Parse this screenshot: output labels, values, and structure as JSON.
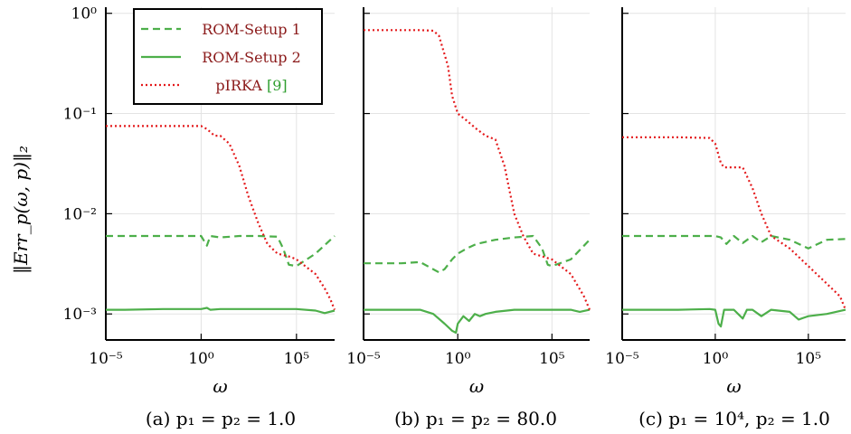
{
  "colors": {
    "rom1": "#4daf4a",
    "rom2": "#4daf4a",
    "pirka": "#e41a1c",
    "legend_text": "#8b1a1a",
    "cite": "#2f9e2f"
  },
  "ylabel": "‖Err_p(ω, p)‖₂",
  "legend": {
    "position": "top-left of panel (a)",
    "entries": [
      {
        "label": "ROM-Setup 1",
        "style": "dashed"
      },
      {
        "label": "ROM-Setup 2",
        "style": "solid"
      },
      {
        "label": "pIRKA",
        "cite": "[9]",
        "style": "dotted"
      }
    ]
  },
  "chart_data": [
    {
      "type": "line",
      "caption": "(a) p₁ = p₂ = 1.0",
      "xlabel": "ω",
      "xscale": "log",
      "yscale": "log",
      "xlim": [
        1e-05,
        10000000.0
      ],
      "ylim": [
        0.00055,
        1.15
      ],
      "xticks": [
        "10⁻⁵",
        "10⁰",
        "10⁵"
      ],
      "yticks": [
        "10⁰",
        "10⁻¹",
        "10⁻²",
        "10⁻³"
      ],
      "grid": true,
      "series": [
        {
          "name": "ROM-Setup 1",
          "style": "dashed",
          "points": [
            [
              1e-05,
              0.006
            ],
            [
              0.001,
              0.006
            ],
            [
              0.1,
              0.006
            ],
            [
              1,
              0.006
            ],
            [
              2,
              0.0048
            ],
            [
              3,
              0.006
            ],
            [
              10,
              0.0058
            ],
            [
              100,
              0.006
            ],
            [
              1000,
              0.006
            ],
            [
              10000.0,
              0.0059
            ],
            [
              20000.0,
              0.0045
            ],
            [
              40000.0,
              0.0031
            ],
            [
              100000.0,
              0.003
            ],
            [
              1000000.0,
              0.004
            ],
            [
              10000000.0,
              0.006
            ]
          ]
        },
        {
          "name": "ROM-Setup 2",
          "style": "solid",
          "points": [
            [
              1e-05,
              0.0011
            ],
            [
              0.0001,
              0.0011
            ],
            [
              0.01,
              0.00112
            ],
            [
              1,
              0.00112
            ],
            [
              2,
              0.00115
            ],
            [
              3,
              0.0011
            ],
            [
              10,
              0.00112
            ],
            [
              1000,
              0.00112
            ],
            [
              100000.0,
              0.00112
            ],
            [
              1000000.0,
              0.00108
            ],
            [
              3000000.0,
              0.00102
            ],
            [
              10000000.0,
              0.00108
            ]
          ]
        },
        {
          "name": "pIRKA",
          "style": "dotted",
          "points": [
            [
              1e-05,
              0.075
            ],
            [
              0.001,
              0.075
            ],
            [
              0.1,
              0.075
            ],
            [
              1,
              0.075
            ],
            [
              2,
              0.07
            ],
            [
              5,
              0.06
            ],
            [
              10,
              0.06
            ],
            [
              30,
              0.05
            ],
            [
              100,
              0.03
            ],
            [
              300,
              0.015
            ],
            [
              1000,
              0.008
            ],
            [
              3000,
              0.005
            ],
            [
              10000.0,
              0.004
            ],
            [
              50000.0,
              0.0037
            ],
            [
              100000.0,
              0.0035
            ],
            [
              1000000.0,
              0.0025
            ],
            [
              3000000.0,
              0.0018
            ],
            [
              6000000.0,
              0.0014
            ],
            [
              10000000.0,
              0.0011
            ]
          ]
        }
      ]
    },
    {
      "type": "line",
      "caption": "(b) p₁ = p₂ = 80.0",
      "xlabel": "ω",
      "xscale": "log",
      "yscale": "log",
      "xlim": [
        1e-05,
        10000000.0
      ],
      "ylim": [
        0.00055,
        1.15
      ],
      "xticks": [
        "10⁻⁵",
        "10⁰",
        "10⁵"
      ],
      "grid": true,
      "series": [
        {
          "name": "ROM-Setup 1",
          "style": "dashed",
          "points": [
            [
              1e-05,
              0.0032
            ],
            [
              0.001,
              0.0032
            ],
            [
              0.01,
              0.0033
            ],
            [
              0.1,
              0.0026
            ],
            [
              0.2,
              0.0028
            ],
            [
              0.5,
              0.0035
            ],
            [
              1,
              0.004
            ],
            [
              3,
              0.0045
            ],
            [
              10,
              0.005
            ],
            [
              100,
              0.0055
            ],
            [
              1000,
              0.0058
            ],
            [
              10000.0,
              0.006
            ],
            [
              30000.0,
              0.0045
            ],
            [
              60000.0,
              0.0031
            ],
            [
              100000.0,
              0.003
            ],
            [
              1000000.0,
              0.0035
            ],
            [
              10000000.0,
              0.0055
            ]
          ]
        },
        {
          "name": "ROM-Setup 2",
          "style": "solid",
          "points": [
            [
              1e-05,
              0.0011
            ],
            [
              0.01,
              0.0011
            ],
            [
              0.05,
              0.001
            ],
            [
              0.2,
              0.0008
            ],
            [
              0.5,
              0.00068
            ],
            [
              0.8,
              0.00065
            ],
            [
              1,
              0.0008
            ],
            [
              2,
              0.00095
            ],
            [
              4,
              0.00085
            ],
            [
              8,
              0.001
            ],
            [
              15,
              0.00095
            ],
            [
              30,
              0.001
            ],
            [
              100,
              0.00105
            ],
            [
              1000.0,
              0.0011
            ],
            [
              10000.0,
              0.0011
            ],
            [
              100000.0,
              0.0011
            ],
            [
              1000000.0,
              0.0011
            ],
            [
              3000000.0,
              0.00105
            ],
            [
              10000000.0,
              0.0011
            ]
          ]
        },
        {
          "name": "pIRKA",
          "style": "dotted",
          "points": [
            [
              1e-05,
              0.68
            ],
            [
              0.01,
              0.68
            ],
            [
              0.05,
              0.67
            ],
            [
              0.1,
              0.6
            ],
            [
              0.3,
              0.3
            ],
            [
              0.5,
              0.15
            ],
            [
              1,
              0.1
            ],
            [
              3,
              0.085
            ],
            [
              10,
              0.07
            ],
            [
              30,
              0.06
            ],
            [
              100,
              0.055
            ],
            [
              300,
              0.03
            ],
            [
              1000,
              0.01
            ],
            [
              3000,
              0.006
            ],
            [
              10000.0,
              0.004
            ],
            [
              100000.0,
              0.0035
            ],
            [
              1000000.0,
              0.0025
            ],
            [
              5000000.0,
              0.0015
            ],
            [
              10000000.0,
              0.0011
            ]
          ]
        }
      ]
    },
    {
      "type": "line",
      "caption": "(c) p₁ = 10⁴, p₂ = 1.0",
      "xlabel": "ω",
      "xscale": "log",
      "yscale": "log",
      "xlim": [
        1e-05,
        10000000.0
      ],
      "ylim": [
        0.00055,
        1.15
      ],
      "xticks": [
        "10⁻⁵",
        "10⁰",
        "10⁵"
      ],
      "grid": true,
      "series": [
        {
          "name": "ROM-Setup 1",
          "style": "dashed",
          "points": [
            [
              1e-05,
              0.006
            ],
            [
              0.01,
              0.006
            ],
            [
              1,
              0.006
            ],
            [
              2,
              0.0058
            ],
            [
              4,
              0.005
            ],
            [
              10,
              0.006
            ],
            [
              30,
              0.0051
            ],
            [
              100,
              0.006
            ],
            [
              300,
              0.0052
            ],
            [
              1000,
              0.006
            ],
            [
              10000.0,
              0.0055
            ],
            [
              100000.0,
              0.0045
            ],
            [
              1000000.0,
              0.0055
            ],
            [
              10000000.0,
              0.0056
            ]
          ]
        },
        {
          "name": "ROM-Setup 2",
          "style": "solid",
          "points": [
            [
              1e-05,
              0.0011
            ],
            [
              0.01,
              0.0011
            ],
            [
              0.5,
              0.00112
            ],
            [
              1,
              0.0011
            ],
            [
              1.5,
              0.0008
            ],
            [
              2,
              0.00075
            ],
            [
              3,
              0.0011
            ],
            [
              10,
              0.0011
            ],
            [
              30,
              0.0009
            ],
            [
              50,
              0.0011
            ],
            [
              100,
              0.0011
            ],
            [
              300,
              0.00095
            ],
            [
              1000,
              0.0011
            ],
            [
              10000.0,
              0.00105
            ],
            [
              30000.0,
              0.00088
            ],
            [
              100000.0,
              0.00095
            ],
            [
              1000000.0,
              0.001
            ],
            [
              10000000.0,
              0.0011
            ]
          ]
        },
        {
          "name": "pIRKA",
          "style": "dotted",
          "points": [
            [
              1e-05,
              0.058
            ],
            [
              0.01,
              0.058
            ],
            [
              0.5,
              0.057
            ],
            [
              1,
              0.05
            ],
            [
              2,
              0.032
            ],
            [
              3,
              0.029
            ],
            [
              30,
              0.029
            ],
            [
              100,
              0.018
            ],
            [
              300,
              0.01
            ],
            [
              1000,
              0.006
            ],
            [
              10000.0,
              0.0045
            ],
            [
              100000.0,
              0.003
            ],
            [
              1000000.0,
              0.002
            ],
            [
              5000000.0,
              0.0015
            ],
            [
              10000000.0,
              0.0011
            ]
          ]
        }
      ]
    }
  ]
}
